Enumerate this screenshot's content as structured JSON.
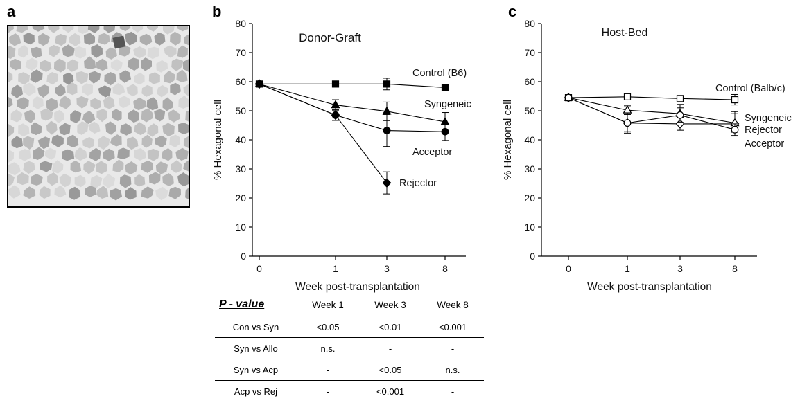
{
  "panels": {
    "a": {
      "letter": "a"
    },
    "b": {
      "letter": "b"
    },
    "c": {
      "letter": "c"
    }
  },
  "chart_data": [
    {
      "type": "line",
      "title": "Donor-Graft",
      "xlabel": "Week post-transplantation",
      "ylabel": "% Hexagonal cell",
      "categories": [
        "0",
        "1",
        "3",
        "8"
      ],
      "ylim": [
        0,
        80
      ],
      "yticks": [
        0,
        10,
        20,
        30,
        40,
        50,
        60,
        70,
        80
      ],
      "grid": false,
      "series": [
        {
          "name": "Control (B6)",
          "marker": "square-filled",
          "values": [
            59.2,
            59.2,
            59.2,
            58.0
          ],
          "errors": [
            0.8,
            0.8,
            2.0,
            0.8
          ]
        },
        {
          "name": "Syngeneic",
          "marker": "triangle-filled",
          "values": [
            59.2,
            52.0,
            49.8,
            46.2
          ],
          "errors": [
            0.8,
            1.8,
            3.2,
            3.2
          ]
        },
        {
          "name": "Acceptor",
          "marker": "circle-filled",
          "values": [
            59.2,
            48.5,
            43.2,
            42.8
          ],
          "errors": [
            0.8,
            1.8,
            5.5,
            3.0
          ]
        },
        {
          "name": "Rejector",
          "marker": "diamond-filled",
          "values": [
            59.2,
            48.5,
            25.2,
            null
          ],
          "errors": [
            0.8,
            1.8,
            3.8,
            0
          ]
        }
      ],
      "annotations": [
        "Control (B6)",
        "Syngeneic",
        "Acceptor",
        "Rejector"
      ]
    },
    {
      "type": "line",
      "title": "Host-Bed",
      "xlabel": "Week post-transplantation",
      "ylabel": "% Hexagonal cell",
      "categories": [
        "0",
        "1",
        "3",
        "8"
      ],
      "ylim": [
        0,
        80
      ],
      "yticks": [
        0,
        10,
        20,
        30,
        40,
        50,
        60,
        70,
        80
      ],
      "grid": false,
      "series": [
        {
          "name": "Control (Balb/c)",
          "marker": "square-open",
          "values": [
            54.5,
            54.8,
            54.2,
            53.8
          ],
          "errors": [
            1.0,
            0.8,
            1.0,
            1.8
          ]
        },
        {
          "name": "Syngeneic",
          "marker": "triangle-open",
          "values": [
            54.5,
            50.2,
            49.0,
            45.8
          ],
          "errors": [
            1.0,
            1.5,
            3.2,
            3.2
          ]
        },
        {
          "name": "Rejector",
          "marker": "diamond-open",
          "values": [
            54.5,
            45.8,
            45.5,
            45.5
          ],
          "errors": [
            1.0,
            3.0,
            2.2,
            4.2
          ]
        },
        {
          "name": "Acceptor",
          "marker": "circle-open",
          "values": [
            54.5,
            45.8,
            48.5,
            43.5
          ],
          "errors": [
            1.0,
            3.5,
            2.5,
            2.0
          ]
        }
      ],
      "annotations": [
        "Control (Balb/c)",
        "Syngeneic",
        "Rejector",
        "Acceptor"
      ]
    }
  ],
  "pvalue_table": {
    "header": [
      "P - value",
      "Week 1",
      "Week 3",
      "Week 8"
    ],
    "rows": [
      [
        "Con vs Syn",
        "<0.05",
        "<0.01",
        "<0.001"
      ],
      [
        "Syn vs Allo",
        "n.s.",
        "-",
        "-"
      ],
      [
        "Syn vs Acp",
        "-",
        "<0.05",
        "n.s."
      ],
      [
        "Acp vs Rej",
        "-",
        "<0.001",
        "-"
      ]
    ]
  }
}
